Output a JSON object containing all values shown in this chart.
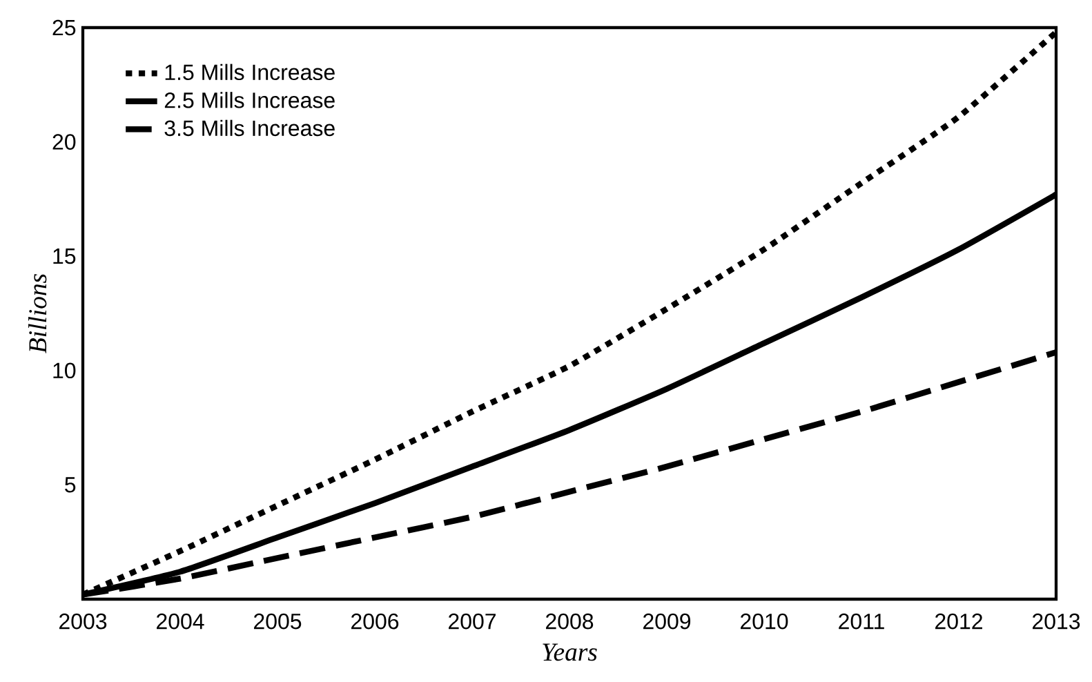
{
  "chart_data": {
    "type": "line",
    "xlabel": "Years",
    "ylabel": "Billions",
    "x": [
      2003,
      2004,
      2005,
      2006,
      2007,
      2008,
      2009,
      2010,
      2011,
      2012,
      2013
    ],
    "series": [
      {
        "name": "1.5 Mills Increase",
        "color": "#000000",
        "line_style": "dotted",
        "values": [
          0.2,
          2.1,
          4.1,
          6.1,
          8.2,
          10.2,
          12.7,
          15.3,
          18.2,
          21.1,
          24.8
        ]
      },
      {
        "name": "2.5 Mills Increase",
        "color": "#000000",
        "line_style": "solid",
        "values": [
          0.2,
          1.2,
          2.7,
          4.2,
          5.8,
          7.4,
          9.2,
          11.2,
          13.2,
          15.3,
          17.7
        ]
      },
      {
        "name": "3.5 Mills Increase",
        "color": "#000000",
        "line_style": "dashed",
        "values": [
          0.2,
          0.9,
          1.8,
          2.7,
          3.6,
          4.7,
          5.8,
          7.0,
          8.2,
          9.5,
          10.8
        ]
      }
    ],
    "xlim": [
      2003,
      2013
    ],
    "ylim": [
      0,
      25
    ],
    "xticks": [
      2003,
      2004,
      2005,
      2006,
      2007,
      2008,
      2009,
      2010,
      2011,
      2012,
      2013
    ],
    "yticks": [
      5,
      10,
      15,
      20,
      25
    ],
    "grid": false,
    "legend": "top left",
    "marker": "none"
  }
}
